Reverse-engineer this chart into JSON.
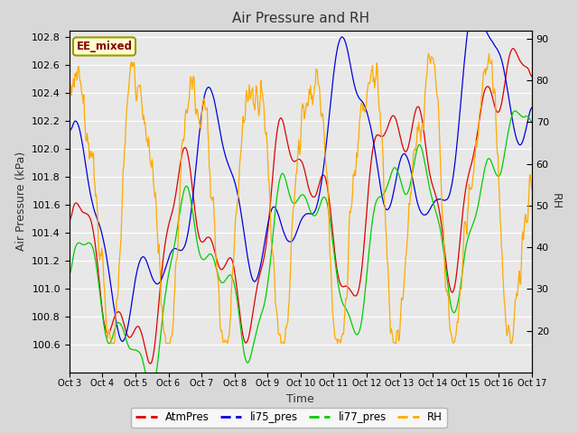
{
  "title": "Air Pressure and RH",
  "xlabel": "Time",
  "ylabel_left": "Air Pressure (kPa)",
  "ylabel_right": "RH",
  "annotation": "EE_mixed",
  "ylim_left": [
    100.4,
    102.85
  ],
  "ylim_right": [
    10,
    92
  ],
  "yticks_left": [
    100.6,
    100.8,
    101.0,
    101.2,
    101.4,
    101.6,
    101.8,
    102.0,
    102.2,
    102.4,
    102.6,
    102.8
  ],
  "yticks_right": [
    20,
    30,
    40,
    50,
    60,
    70,
    80,
    90
  ],
  "xtick_labels": [
    "Oct 3",
    "Oct 4",
    "Oct 5",
    "Oct 6",
    "Oct 7",
    "Oct 8",
    "Oct 9",
    "Oct 10",
    "Oct 11",
    "Oct 12",
    "Oct 13",
    "Oct 14",
    "Oct 15",
    "Oct 16",
    "Oct 17"
  ],
  "colors": {
    "AtmPres": "#dd0000",
    "li75_pres": "#0000dd",
    "li77_pres": "#00cc00",
    "RH": "#ffaa00"
  },
  "background_color": "#d8d8d8",
  "plot_bg": "#e8e8e8",
  "annotation_bg": "#ffffcc",
  "annotation_border": "#999900",
  "annotation_text_color": "#880000",
  "grid_color": "#ffffff",
  "title_color": "#333333",
  "legend_dash": true
}
